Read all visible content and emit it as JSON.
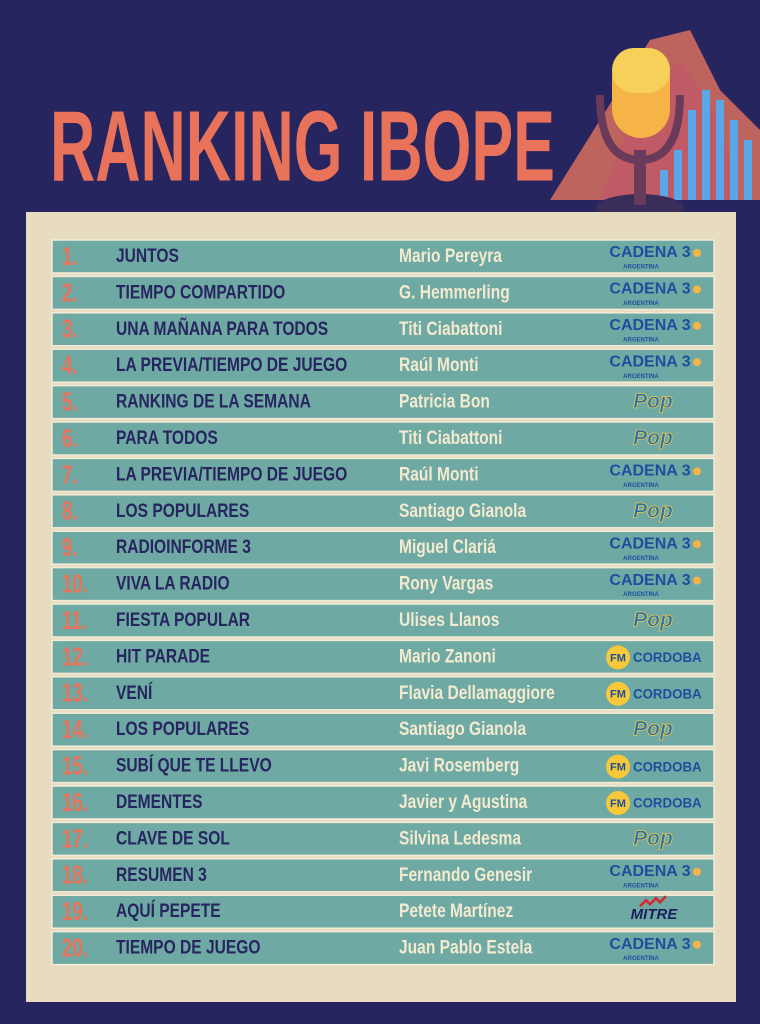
{
  "title": "RANKING IBOPE",
  "rows": [
    {
      "rank": "1.",
      "program": "JUNTOS",
      "host": "Mario Pereyra",
      "station": "CADENA 3",
      "station_sub": "ARGENTINA"
    },
    {
      "rank": "2.",
      "program": "TIEMPO COMPARTIDO",
      "host": "G. Hemmerling",
      "station": "CADENA 3",
      "station_sub": "ARGENTINA"
    },
    {
      "rank": "3.",
      "program": "UNA MAÑANA PARA TODOS",
      "host": "Titi Ciabattoni",
      "station": "CADENA 3",
      "station_sub": "ARGENTINA"
    },
    {
      "rank": "4.",
      "program": "LA PREVIA/TIEMPO DE JUEGO",
      "host": "Raúl Monti",
      "station": "CADENA 3",
      "station_sub": "ARGENTINA"
    },
    {
      "rank": "5.",
      "program": "RANKING DE LA SEMANA",
      "host": "Patricia Bon",
      "station": "Pop"
    },
    {
      "rank": "6.",
      "program": "PARA TODOS",
      "host": "Titi Ciabattoni",
      "station": "Pop"
    },
    {
      "rank": "7.",
      "program": "LA PREVIA/TIEMPO DE JUEGO",
      "host": "Raúl Monti",
      "station": "CADENA 3",
      "station_sub": "ARGENTINA"
    },
    {
      "rank": "8.",
      "program": "LOS POPULARES",
      "host": "Santiago Gianola",
      "station": "Pop"
    },
    {
      "rank": "9.",
      "program": "RADIOINFORME 3",
      "host": "Miguel Clariá",
      "station": "CADENA 3",
      "station_sub": "ARGENTINA"
    },
    {
      "rank": "10.",
      "program": "VIVA LA RADIO",
      "host": "Rony Vargas",
      "station": "CADENA 3",
      "station_sub": "ARGENTINA"
    },
    {
      "rank": "11.",
      "program": "FIESTA POPULAR",
      "host": "Ulises Llanos",
      "station": "Pop"
    },
    {
      "rank": "12.",
      "program": "HIT PARADE",
      "host": "Mario Zanoni",
      "station": "CORDOBA",
      "station_badge": "FM"
    },
    {
      "rank": "13.",
      "program": "VENÍ",
      "host": "Flavia Dellamaggiore",
      "station": "CORDOBA",
      "station_badge": "FM"
    },
    {
      "rank": "14.",
      "program": "LOS POPULARES",
      "host": "Santiago Gianola",
      "station": "Pop"
    },
    {
      "rank": "15.",
      "program": "SUBÍ QUE TE LLEVO",
      "host": "Javi Rosemberg",
      "station": "CORDOBA",
      "station_badge": "FM"
    },
    {
      "rank": "16.",
      "program": "DEMENTES",
      "host": "Javier y Agustina",
      "station": "CORDOBA",
      "station_badge": "FM"
    },
    {
      "rank": "17.",
      "program": "CLAVE DE SOL",
      "host": "Silvina Ledesma",
      "station": "Pop"
    },
    {
      "rank": "18.",
      "program": "RESUMEN 3",
      "host": "Fernando Genesir",
      "station": "CADENA 3",
      "station_sub": "ARGENTINA"
    },
    {
      "rank": "19.",
      "program": "AQUÍ PEPETE",
      "host": "Petete Martínez",
      "station": "MITRE"
    },
    {
      "rank": "20.",
      "program": "TIEMPO DE JUEGO",
      "host": "Juan Pablo Estela",
      "station": "CADENA 3",
      "station_sub": "ARGENTINA"
    }
  ]
}
